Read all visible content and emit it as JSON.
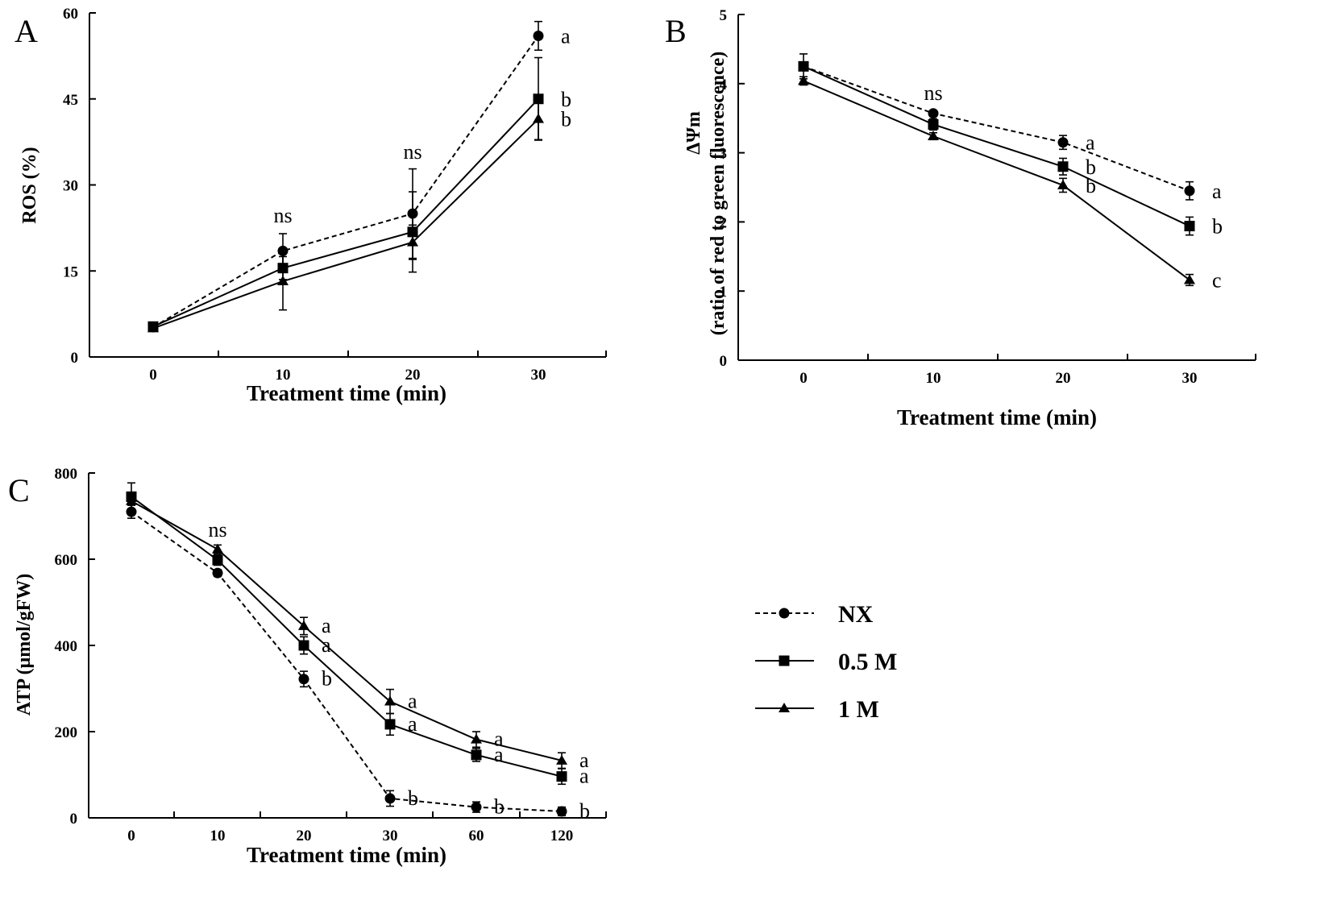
{
  "chart_data": [
    {
      "panel": "A",
      "type": "line",
      "xlabel": "Treatment time (min)",
      "ylabel": "ROS (%)",
      "ylim": [
        0,
        60
      ],
      "yticks": [
        "0",
        "15",
        "30",
        "45",
        "60"
      ],
      "categories": [
        "0",
        "10",
        "20",
        "30"
      ],
      "series": [
        {
          "name": "NX",
          "marker": "circle",
          "dashed": true,
          "values": [
            5.2,
            18.5,
            25,
            56
          ],
          "err": [
            0.6,
            3.0,
            7.8,
            2.5
          ],
          "labels": [
            "",
            "",
            "",
            "a"
          ]
        },
        {
          "name": "0.5 M",
          "marker": "square",
          "dashed": false,
          "values": [
            5.3,
            15.5,
            21.8,
            45
          ],
          "err": [
            0.6,
            2.0,
            7.0,
            7.2
          ],
          "labels": [
            "",
            "",
            "",
            "b"
          ]
        },
        {
          "name": "1 M",
          "marker": "triangle",
          "dashed": false,
          "values": [
            5.0,
            13.2,
            20,
            41.5
          ],
          "err": [
            0.5,
            5.0,
            3.0,
            3.6
          ],
          "labels": [
            "",
            "",
            "",
            "b"
          ]
        }
      ],
      "group_labels": [
        "",
        "ns",
        "ns",
        ""
      ]
    },
    {
      "panel": "B",
      "type": "line",
      "xlabel": "Treatment time (min)",
      "ylabel_line1": "ΔΨm",
      "ylabel_line2": "(ratio of red to green fluorescence)",
      "ylim": [
        0,
        5
      ],
      "yticks": [
        "0",
        "1",
        "2",
        "3",
        "4",
        "5"
      ],
      "categories": [
        "0",
        "10",
        "20",
        "30"
      ],
      "series": [
        {
          "name": "NX",
          "marker": "circle",
          "dashed": true,
          "values": [
            4.25,
            3.57,
            3.15,
            2.45
          ],
          "err": [
            0.05,
            0.04,
            0.1,
            0.13
          ],
          "labels": [
            "",
            "",
            "a",
            "a"
          ]
        },
        {
          "name": "0.5 M",
          "marker": "square",
          "dashed": false,
          "values": [
            4.25,
            3.41,
            2.8,
            1.94
          ],
          "err": [
            0.18,
            0.08,
            0.12,
            0.13
          ],
          "labels": [
            "",
            "",
            "b",
            "b"
          ]
        },
        {
          "name": "1 M",
          "marker": "triangle",
          "dashed": false,
          "values": [
            4.04,
            3.24,
            2.53,
            1.16
          ],
          "err": [
            0.06,
            0.05,
            0.1,
            0.08
          ],
          "labels": [
            "",
            "",
            "b",
            "c"
          ]
        }
      ],
      "group_labels": [
        "",
        "ns",
        "",
        ""
      ]
    },
    {
      "panel": "C",
      "type": "line",
      "xlabel": "Treatment time (min)",
      "ylabel": "ATP (μmol/gFW)",
      "ylim": [
        0,
        800
      ],
      "yticks": [
        "0",
        "200",
        "400",
        "600",
        "800"
      ],
      "categories": [
        "0",
        "10",
        "20",
        "30",
        "60",
        "120"
      ],
      "series": [
        {
          "name": "NX",
          "marker": "circle",
          "dashed": true,
          "values": [
            710,
            568,
            322,
            45,
            25,
            15
          ],
          "err": [
            15,
            8,
            18,
            18,
            12,
            10
          ],
          "labels": [
            "",
            "",
            "b",
            "b",
            "b",
            "b"
          ]
        },
        {
          "name": "0.5 M",
          "marker": "square",
          "dashed": false,
          "values": [
            745,
            598,
            400,
            217,
            146,
            96
          ],
          "err": [
            32,
            12,
            20,
            25,
            15,
            18
          ],
          "labels": [
            "",
            "",
            "a",
            "a",
            "a",
            "a"
          ]
        },
        {
          "name": "1 M",
          "marker": "triangle",
          "dashed": false,
          "values": [
            735,
            623,
            445,
            270,
            182,
            133
          ],
          "err": [
            20,
            10,
            20,
            28,
            18,
            18
          ],
          "labels": [
            "",
            "",
            "a",
            "a",
            "a",
            "a"
          ]
        }
      ],
      "group_labels": [
        "",
        "ns",
        "",
        "",
        "",
        ""
      ]
    }
  ],
  "legend": [
    {
      "name": "NX",
      "marker": "circle",
      "dashed": true
    },
    {
      "name": "0.5 M",
      "marker": "square",
      "dashed": false
    },
    {
      "name": "1 M",
      "marker": "triangle",
      "dashed": false
    }
  ]
}
